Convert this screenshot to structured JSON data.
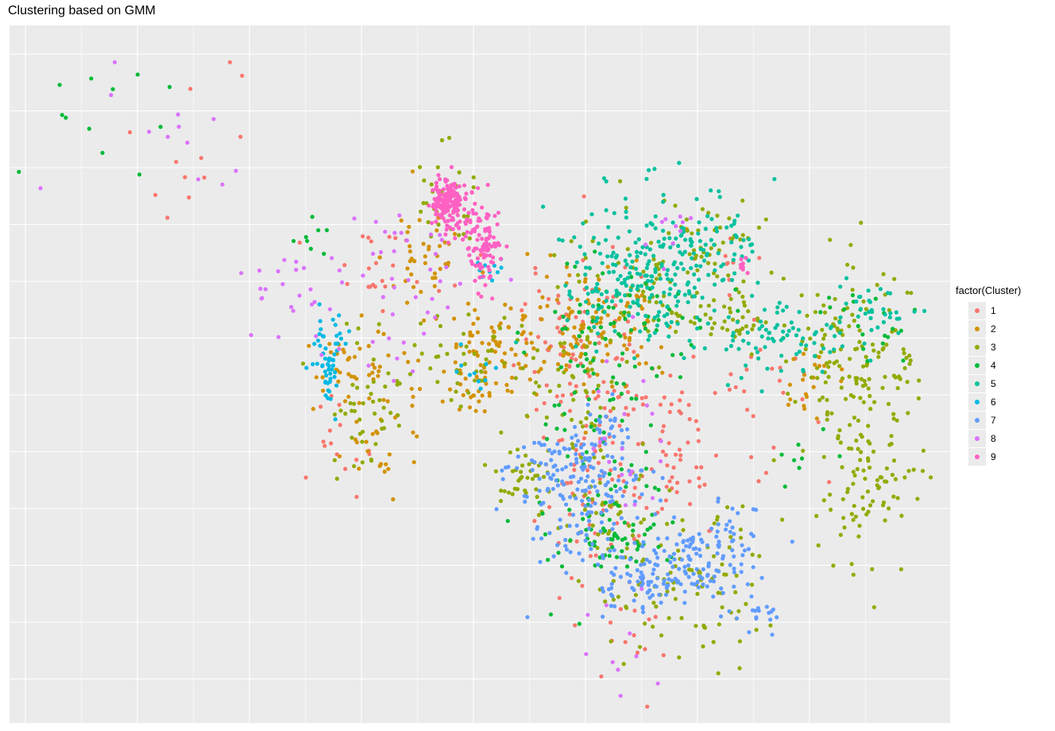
{
  "chart_data": {
    "type": "scatter",
    "title": "Clustering based on GMM",
    "xlabel": "",
    "ylabel": "",
    "grid": true,
    "axes_ticks_visible": false,
    "legend": {
      "title": "factor(Cluster)",
      "placement": "right",
      "entries": [
        "1",
        "2",
        "3",
        "4",
        "5",
        "6",
        "7",
        "8",
        "9"
      ]
    },
    "series": [
      {
        "name": "1",
        "color": "#F8766D",
        "regions": [
          [
            0.62,
            0.56,
            0.03,
            0.12,
            120
          ],
          [
            0.7,
            0.62,
            0.03,
            0.07,
            60
          ],
          [
            0.59,
            0.44,
            0.03,
            0.04,
            30
          ],
          [
            0.39,
            0.34,
            0.04,
            0.04,
            25
          ],
          [
            0.81,
            0.55,
            0.03,
            0.06,
            25
          ],
          [
            0.66,
            0.86,
            0.02,
            0.05,
            15
          ],
          [
            0.35,
            0.61,
            0.02,
            0.03,
            15
          ],
          [
            0.2,
            0.16,
            0.05,
            0.06,
            12
          ],
          [
            0.76,
            0.34,
            0.02,
            0.02,
            10
          ]
        ]
      },
      {
        "name": "2",
        "color": "#D39200",
        "regions": [
          [
            0.63,
            0.42,
            0.04,
            0.05,
            90
          ],
          [
            0.52,
            0.45,
            0.03,
            0.03,
            70
          ],
          [
            0.39,
            0.56,
            0.03,
            0.05,
            50
          ],
          [
            0.44,
            0.33,
            0.02,
            0.03,
            40
          ],
          [
            0.49,
            0.52,
            0.03,
            0.02,
            30
          ],
          [
            0.36,
            0.47,
            0.02,
            0.03,
            20
          ],
          [
            0.85,
            0.51,
            0.02,
            0.04,
            20
          ],
          [
            0.6,
            0.45,
            0.02,
            0.03,
            20
          ]
        ]
      },
      {
        "name": "3",
        "color": "#93AA00",
        "regions": [
          [
            0.9,
            0.6,
            0.03,
            0.1,
            120
          ],
          [
            0.72,
            0.8,
            0.04,
            0.06,
            90
          ],
          [
            0.89,
            0.44,
            0.03,
            0.06,
            70
          ],
          [
            0.61,
            0.52,
            0.02,
            0.1,
            60
          ],
          [
            0.38,
            0.56,
            0.02,
            0.04,
            40
          ],
          [
            0.55,
            0.64,
            0.02,
            0.02,
            35
          ],
          [
            0.5,
            0.48,
            0.05,
            0.03,
            60
          ],
          [
            0.7,
            0.37,
            0.04,
            0.05,
            70
          ],
          [
            0.75,
            0.3,
            0.02,
            0.03,
            30
          ],
          [
            0.46,
            0.26,
            0.02,
            0.04,
            30
          ],
          [
            0.64,
            0.7,
            0.03,
            0.04,
            40
          ],
          [
            0.95,
            0.48,
            0.01,
            0.03,
            15
          ],
          [
            0.92,
            0.66,
            0.02,
            0.03,
            20
          ],
          [
            0.78,
            0.42,
            0.03,
            0.02,
            30
          ]
        ]
      },
      {
        "name": "4",
        "color": "#00BA38",
        "regions": [
          [
            0.62,
            0.57,
            0.03,
            0.11,
            90
          ],
          [
            0.64,
            0.73,
            0.03,
            0.03,
            50
          ],
          [
            0.66,
            0.42,
            0.04,
            0.04,
            40
          ],
          [
            0.91,
            0.42,
            0.02,
            0.03,
            20
          ],
          [
            0.32,
            0.3,
            0.01,
            0.02,
            8
          ],
          [
            0.11,
            0.13,
            0.05,
            0.05,
            12
          ],
          [
            0.82,
            0.62,
            0.03,
            0.03,
            8
          ]
        ]
      },
      {
        "name": "5",
        "color": "#00C19F",
        "regions": [
          [
            0.7,
            0.35,
            0.04,
            0.06,
            200
          ],
          [
            0.64,
            0.37,
            0.03,
            0.04,
            60
          ],
          [
            0.82,
            0.45,
            0.04,
            0.03,
            80
          ],
          [
            0.92,
            0.41,
            0.02,
            0.02,
            30
          ],
          [
            0.77,
            0.3,
            0.01,
            0.02,
            15
          ]
        ]
      },
      {
        "name": "6",
        "color": "#00B9E3",
        "regions": [
          [
            0.34,
            0.46,
            0.01,
            0.02,
            35
          ],
          [
            0.34,
            0.51,
            0.004,
            0.02,
            20
          ],
          [
            0.51,
            0.35,
            0.01,
            0.01,
            10
          ],
          [
            0.5,
            0.49,
            0.01,
            0.02,
            10
          ]
        ]
      },
      {
        "name": "7",
        "color": "#619CFF",
        "regions": [
          [
            0.61,
            0.67,
            0.03,
            0.05,
            120
          ],
          [
            0.7,
            0.77,
            0.04,
            0.03,
            110
          ],
          [
            0.58,
            0.63,
            0.03,
            0.03,
            60
          ],
          [
            0.67,
            0.81,
            0.02,
            0.02,
            40
          ],
          [
            0.76,
            0.76,
            0.02,
            0.04,
            50
          ],
          [
            0.8,
            0.84,
            0.01,
            0.02,
            15
          ],
          [
            0.64,
            0.59,
            0.01,
            0.02,
            20
          ]
        ]
      },
      {
        "name": "8",
        "color": "#DB72FB",
        "regions": [
          [
            0.43,
            0.38,
            0.04,
            0.06,
            40
          ],
          [
            0.3,
            0.38,
            0.03,
            0.05,
            25
          ],
          [
            0.65,
            0.6,
            0.02,
            0.06,
            20
          ],
          [
            0.7,
            0.3,
            0.01,
            0.02,
            10
          ],
          [
            0.18,
            0.18,
            0.05,
            0.06,
            12
          ],
          [
            0.64,
            0.9,
            0.02,
            0.05,
            10
          ]
        ]
      },
      {
        "name": "9",
        "color": "#FF61C3",
        "regions": [
          [
            0.465,
            0.25,
            0.008,
            0.015,
            150
          ],
          [
            0.505,
            0.31,
            0.01,
            0.03,
            100
          ],
          [
            0.48,
            0.28,
            0.01,
            0.02,
            20
          ],
          [
            0.78,
            0.34,
            0.005,
            0.01,
            8
          ]
        ]
      }
    ]
  }
}
